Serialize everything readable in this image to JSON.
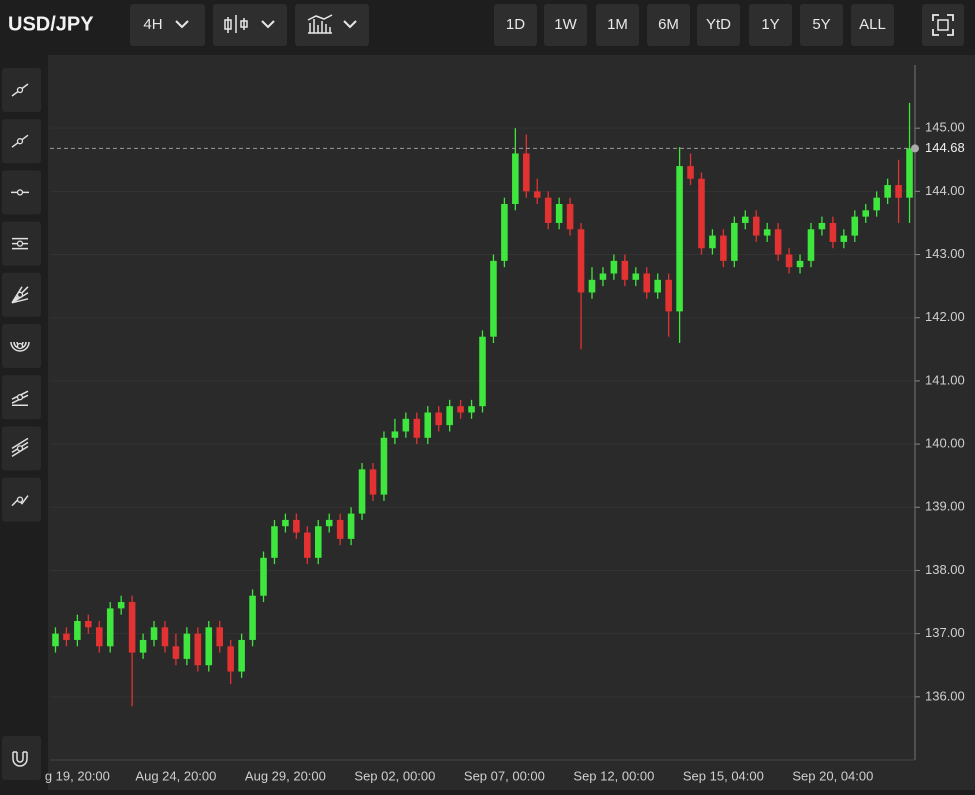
{
  "toolbar": {
    "symbol": "USD/JPY",
    "interval": "4H",
    "ranges": [
      "1D",
      "1W",
      "1M",
      "6M",
      "YtD",
      "1Y",
      "5Y",
      "ALL"
    ]
  },
  "chart_data": {
    "type": "candlestick",
    "up_color": "#3ee63e",
    "down_color": "#e23232",
    "grid": true,
    "categories": [
      null,
      null,
      "g 19, 20:00",
      null,
      null,
      null,
      null,
      null,
      null,
      null,
      null,
      "Aug 24, 20:00",
      null,
      null,
      null,
      null,
      null,
      null,
      null,
      null,
      null,
      "Aug 29, 20:00",
      null,
      null,
      null,
      null,
      null,
      null,
      null,
      null,
      null,
      "Sep 02, 00:00",
      null,
      null,
      null,
      null,
      null,
      null,
      null,
      null,
      null,
      "Sep 07, 00:00",
      null,
      null,
      null,
      null,
      null,
      null,
      null,
      null,
      null,
      "Sep 12, 00:00",
      null,
      null,
      null,
      null,
      null,
      null,
      null,
      null,
      null,
      "Sep 15, 04:00",
      null,
      null,
      null,
      null,
      null,
      null,
      null,
      null,
      null,
      "Sep 20, 04:00",
      null,
      null,
      null,
      null,
      null,
      null,
      null
    ],
    "open": [
      136.8,
      137.0,
      136.9,
      137.2,
      137.1,
      136.8,
      137.4,
      137.5,
      136.7,
      136.9,
      137.1,
      136.8,
      136.6,
      137.0,
      136.5,
      137.1,
      136.8,
      136.4,
      136.9,
      137.6,
      138.2,
      138.7,
      138.8,
      138.6,
      138.2,
      138.7,
      138.8,
      138.5,
      138.9,
      139.6,
      139.2,
      140.1,
      140.2,
      140.4,
      140.1,
      140.5,
      140.3,
      140.6,
      140.5,
      140.6,
      141.7,
      142.9,
      143.8,
      144.6,
      144.0,
      143.9,
      143.5,
      143.8,
      143.4,
      142.4,
      142.6,
      142.7,
      142.9,
      142.6,
      142.7,
      142.4,
      142.6,
      142.1,
      144.4,
      144.2,
      143.1,
      143.3,
      142.9,
      143.5,
      143.6,
      143.3,
      143.4,
      143.0,
      142.8,
      142.9,
      143.4,
      143.5,
      143.2,
      143.3,
      143.6,
      143.7,
      143.9,
      144.1,
      143.9
    ],
    "high": [
      137.1,
      137.1,
      137.3,
      137.3,
      137.2,
      137.5,
      137.6,
      137.6,
      137.0,
      137.2,
      137.2,
      137.0,
      137.1,
      137.1,
      137.2,
      137.2,
      136.9,
      137.0,
      137.7,
      138.3,
      138.8,
      138.9,
      138.9,
      138.7,
      138.8,
      138.9,
      138.9,
      139.0,
      139.7,
      139.7,
      140.2,
      140.4,
      140.5,
      140.5,
      140.6,
      140.6,
      140.7,
      140.7,
      140.7,
      141.8,
      143.0,
      143.9,
      145.0,
      144.9,
      144.2,
      144.0,
      143.9,
      143.9,
      143.5,
      142.8,
      142.8,
      143.0,
      143.0,
      142.8,
      142.8,
      142.7,
      142.7,
      144.7,
      144.6,
      144.3,
      143.4,
      143.4,
      143.6,
      143.7,
      143.7,
      143.5,
      143.5,
      143.1,
      143.0,
      143.5,
      143.6,
      143.6,
      143.4,
      143.7,
      143.8,
      144.0,
      144.2,
      144.5,
      145.4
    ],
    "low": [
      136.7,
      136.8,
      136.8,
      137.0,
      136.7,
      136.7,
      137.3,
      135.85,
      136.6,
      136.8,
      136.7,
      136.5,
      136.5,
      136.4,
      136.4,
      136.7,
      136.2,
      136.3,
      136.8,
      137.5,
      138.1,
      138.6,
      138.5,
      138.1,
      138.1,
      138.6,
      138.4,
      138.4,
      138.8,
      139.1,
      139.1,
      140.0,
      140.1,
      140.0,
      140.0,
      140.2,
      140.2,
      140.4,
      140.4,
      140.5,
      141.6,
      142.8,
      143.7,
      143.9,
      143.8,
      143.4,
      143.4,
      143.3,
      141.5,
      142.3,
      142.5,
      142.6,
      142.5,
      142.5,
      142.3,
      142.3,
      141.7,
      141.6,
      144.1,
      143.0,
      143.0,
      142.8,
      142.8,
      143.4,
      143.2,
      143.2,
      142.9,
      142.7,
      142.7,
      142.8,
      143.3,
      143.1,
      143.1,
      143.2,
      143.5,
      143.6,
      143.8,
      143.5,
      143.5
    ],
    "close": [
      137.0,
      136.9,
      137.2,
      137.1,
      136.8,
      137.4,
      137.5,
      136.7,
      136.9,
      137.1,
      136.8,
      136.6,
      137.0,
      136.5,
      137.1,
      136.8,
      136.4,
      136.9,
      137.6,
      138.2,
      138.7,
      138.8,
      138.6,
      138.2,
      138.7,
      138.8,
      138.5,
      138.9,
      139.6,
      139.2,
      140.1,
      140.2,
      140.4,
      140.1,
      140.5,
      140.3,
      140.6,
      140.5,
      140.6,
      141.7,
      142.9,
      143.8,
      144.6,
      144.0,
      143.9,
      143.5,
      143.8,
      143.4,
      142.4,
      142.6,
      142.7,
      142.9,
      142.6,
      142.7,
      142.4,
      142.6,
      142.1,
      144.4,
      144.2,
      143.1,
      143.3,
      142.9,
      143.5,
      143.6,
      143.3,
      143.4,
      143.0,
      142.8,
      142.9,
      143.4,
      143.5,
      143.2,
      143.3,
      143.6,
      143.7,
      143.9,
      144.1,
      143.9,
      144.68
    ],
    "ylim": [
      135,
      146
    ],
    "yticks": [
      {
        "value": 136,
        "label": "136.00"
      },
      {
        "value": 137,
        "label": "137.00"
      },
      {
        "value": 138,
        "label": "138.00"
      },
      {
        "value": 139,
        "label": "139.00"
      },
      {
        "value": 140,
        "label": "140.00"
      },
      {
        "value": 141,
        "label": "141.00"
      },
      {
        "value": 142,
        "label": "142.00"
      },
      {
        "value": 143,
        "label": "143.00"
      },
      {
        "value": 144,
        "label": "144.00"
      },
      {
        "value": 145,
        "label": "145.00"
      }
    ],
    "last_price": {
      "value": 144.68,
      "label": "144.68"
    }
  }
}
